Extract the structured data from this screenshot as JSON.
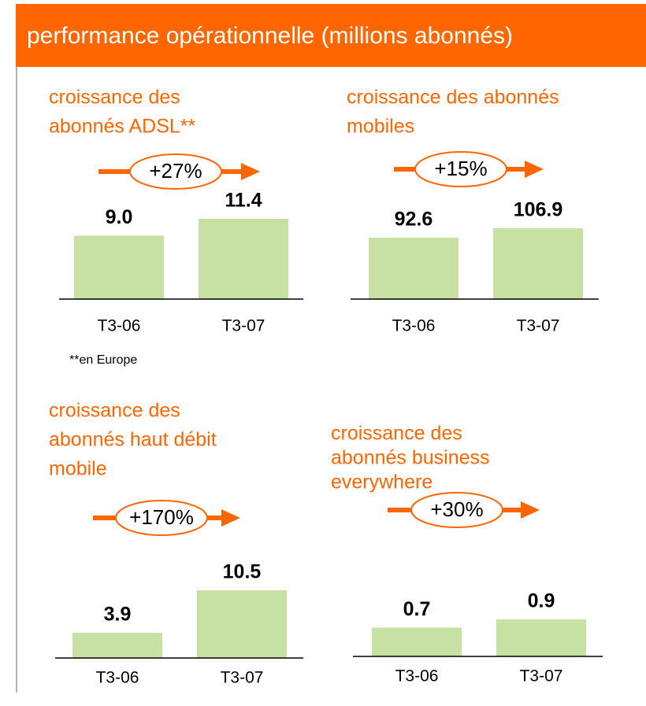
{
  "header": {
    "title": "performance opérationnelle (millions abonnés)"
  },
  "chart_data": [
    {
      "type": "bar",
      "title": [
        "croissance des",
        "abonnés ADSL**"
      ],
      "annotation": "+27%",
      "categories": [
        "T3-06",
        "T3-07"
      ],
      "values": [
        9.0,
        11.4
      ],
      "value_labels": [
        "9.0",
        "11.4"
      ],
      "color": "#c7e0a4",
      "accent": "#ff6600",
      "footnote": "**en Europe"
    },
    {
      "type": "bar",
      "title": [
        "croissance des abonnés",
        "mobiles"
      ],
      "annotation": "+15%",
      "categories": [
        "T3-06",
        "T3-07"
      ],
      "values": [
        92.6,
        106.9
      ],
      "color": "#c7e0a4",
      "accent": "#ff6600"
    },
    {
      "type": "bar",
      "title": [
        "croissance des",
        "abonnés haut débit",
        "mobile"
      ],
      "annotation": "+170%",
      "categories": [
        "T3-06",
        "T3-07"
      ],
      "values": [
        3.9,
        10.5
      ],
      "color": "#c7e0a4",
      "accent": "#ff6600"
    },
    {
      "type": "bar",
      "title": [
        "croissance des",
        "abonnés business",
        "everywhere"
      ],
      "annotation": "+30%",
      "categories": [
        "T3-06",
        "T3-07"
      ],
      "values": [
        0.7,
        0.9
      ],
      "color": "#c7e0a4",
      "accent": "#ff6600"
    }
  ]
}
